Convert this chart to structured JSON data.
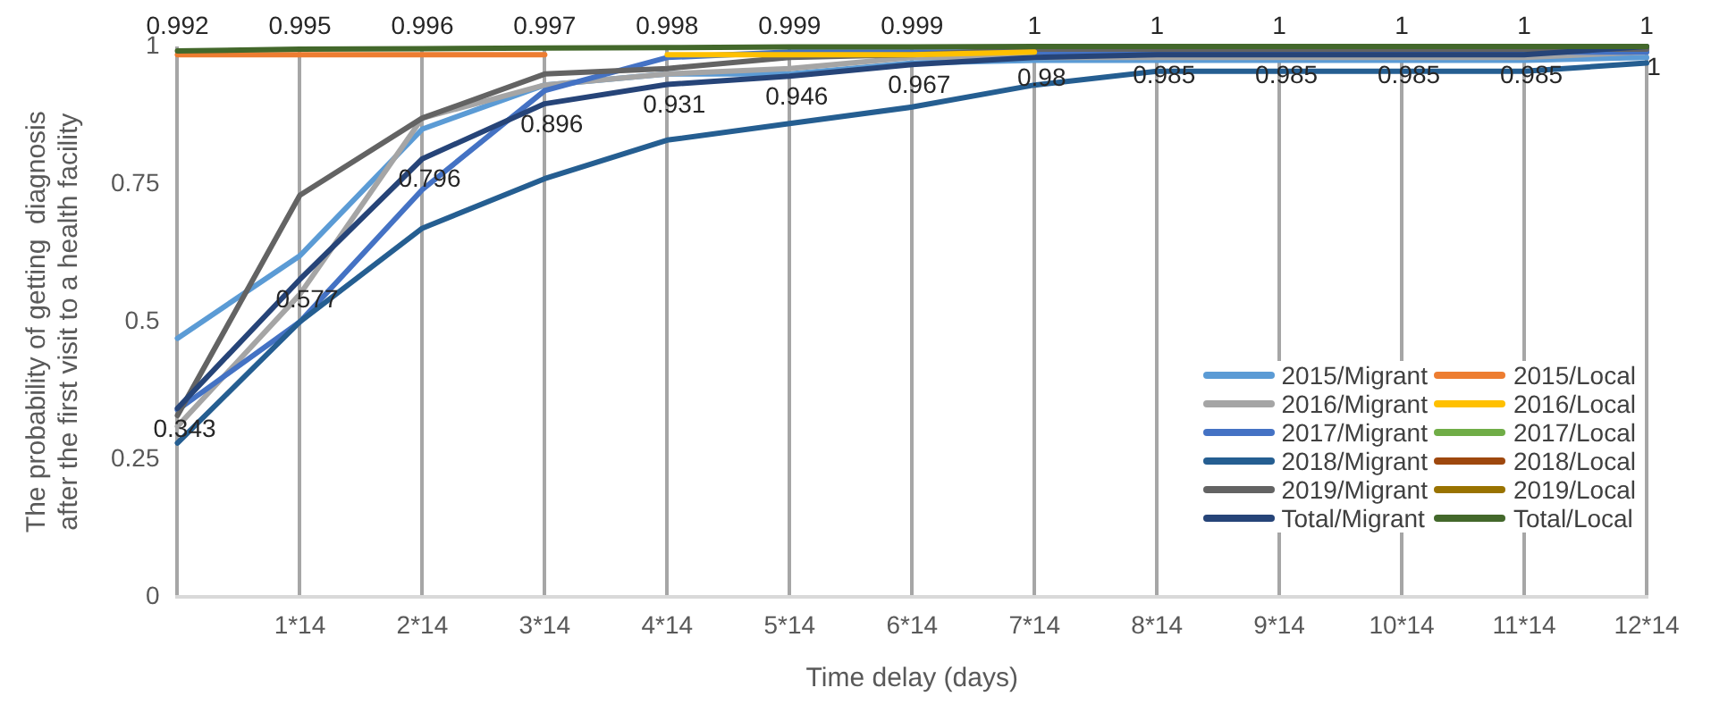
{
  "chart_data": {
    "type": "line",
    "xlabel": "Time delay (days)",
    "ylabel": "The probability of getting  diagnosis\nafter the first visit to a health facility",
    "categories": [
      null,
      "1*14",
      "2*14",
      "3*14",
      "4*14",
      "5*14",
      "6*14",
      "7*14",
      "8*14",
      "9*14",
      "10*14",
      "11*14",
      "12*14"
    ],
    "ylim": [
      0,
      1
    ],
    "yticks": [
      0,
      0.25,
      0.5,
      0.75,
      1
    ],
    "grid": "x",
    "legend": "bottom right",
    "marker": "none",
    "line_style": "solid",
    "series": [
      {
        "name": "2015/Migrant",
        "color": "#5b9bd5",
        "values": [
          0.47,
          0.62,
          0.85,
          0.93,
          0.95,
          0.95,
          0.97,
          0.975,
          0.975,
          0.975,
          0.975,
          0.975,
          0.98
        ]
      },
      {
        "name": "2016/Migrant",
        "color": "#a5a5a5",
        "values": [
          0.31,
          0.55,
          0.87,
          0.93,
          0.95,
          0.96,
          0.98,
          0.98,
          0.98,
          0.98,
          0.98,
          0.98,
          0.99
        ]
      },
      {
        "name": "2017/Migrant",
        "color": "#4472c4",
        "values": [
          0.34,
          0.5,
          0.74,
          0.92,
          0.98,
          0.99,
          0.99,
          0.99,
          0.99,
          0.99,
          0.99,
          0.99,
          0.99
        ]
      },
      {
        "name": "2018/Migrant",
        "color": "#255e91",
        "values": [
          0.28,
          0.5,
          0.67,
          0.76,
          0.83,
          0.86,
          0.89,
          0.93,
          0.955,
          0.955,
          0.955,
          0.955,
          0.97
        ]
      },
      {
        "name": "2019/Migrant",
        "color": "#636363",
        "values": [
          0.33,
          0.73,
          0.87,
          0.95,
          0.96,
          0.98,
          0.985,
          0.995,
          0.995,
          0.995,
          0.995,
          0.995,
          0.995
        ]
      },
      {
        "name": "Total/Migrant",
        "color": "#264478",
        "values": [
          0.343,
          0.577,
          0.796,
          0.896,
          0.931,
          0.946,
          0.967,
          0.98,
          0.985,
          0.985,
          0.985,
          0.985,
          1
        ],
        "value_labels": [
          "0.343",
          "0.577",
          "0.796",
          "0.896",
          "0.931",
          "0.946",
          "0.967",
          "0.98",
          "0.985",
          "0.985",
          "0.985",
          "0.985",
          "1"
        ]
      },
      {
        "name": "2015/Local",
        "color": "#ed7d31",
        "values": [
          0.985,
          0.985,
          0.985,
          0.985,
          null,
          null,
          null,
          null,
          null,
          null,
          null,
          null,
          null
        ]
      },
      {
        "name": "2016/Local",
        "color": "#ffc000",
        "values": [
          null,
          null,
          null,
          null,
          0.985,
          0.985,
          0.985,
          0.99,
          null,
          null,
          null,
          null,
          null
        ]
      },
      {
        "name": "2017/Local",
        "color": "#70ad47",
        "values": [
          null,
          null,
          null,
          null,
          null,
          null,
          null,
          null,
          null,
          null,
          null,
          null,
          null
        ]
      },
      {
        "name": "2018/Local",
        "color": "#9e480e",
        "values": [
          null,
          null,
          null,
          null,
          null,
          null,
          null,
          null,
          null,
          null,
          null,
          null,
          null
        ]
      },
      {
        "name": "2019/Local",
        "color": "#997300",
        "values": [
          null,
          null,
          null,
          null,
          null,
          null,
          null,
          null,
          null,
          null,
          null,
          null,
          null
        ]
      },
      {
        "name": "Total/Local",
        "color": "#43682b",
        "values": [
          0.992,
          0.995,
          0.996,
          0.997,
          0.998,
          0.999,
          0.999,
          1,
          1,
          1,
          1,
          1,
          1
        ],
        "value_labels": [
          "0.992",
          "0.995",
          "0.996",
          "0.997",
          "0.998",
          "0.999",
          "0.999",
          "1",
          "1",
          "1",
          "1",
          "1",
          "1"
        ]
      }
    ]
  }
}
